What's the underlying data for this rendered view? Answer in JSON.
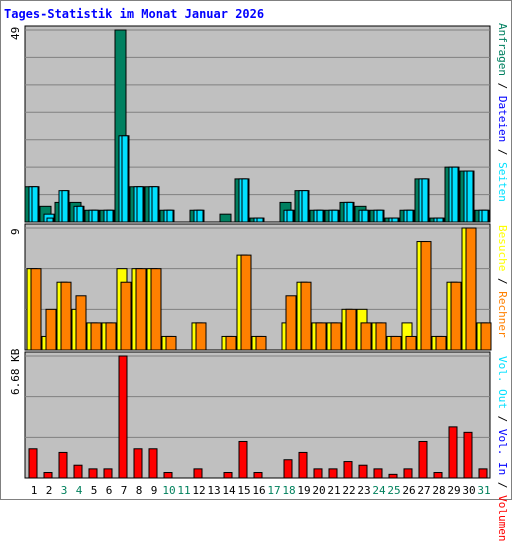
{
  "title": "Tages-Statistik im Monat Januar 2026",
  "colors": {
    "background": "#c0c0c0",
    "border": "#000000",
    "grid": "#808080",
    "requests": "#008060",
    "files": "#00e0ff",
    "pages": "#00e0ff",
    "visits": "#ffff00",
    "sites": "#ff8000",
    "volume": "#ff0000",
    "weekend_label": "#00805c",
    "title": "#0000ff"
  },
  "y_ticks": {
    "top": "49",
    "middle": "9",
    "bottom": "6.68 KB"
  },
  "legends": {
    "top": [
      {
        "text": "Anfragen",
        "color": "#008060"
      },
      {
        "text": "Dateien",
        "color": "#0000ff"
      },
      {
        "text": "Seiten",
        "color": "#00e0ff"
      }
    ],
    "middle": [
      {
        "text": "Besuche",
        "color": "#ffff00"
      },
      {
        "text": "Rechner",
        "color": "#ff8000"
      }
    ],
    "bottom": [
      {
        "text": "Vol. Out",
        "color": "#00e0ff"
      },
      {
        "text": "Vol. In",
        "color": "#0000ff"
      },
      {
        "text": "Volumen",
        "color": "#ff0000"
      }
    ]
  },
  "chart_data": [
    {
      "type": "bar",
      "panel": "top",
      "categories": [
        "1",
        "2",
        "3",
        "4",
        "5",
        "6",
        "7",
        "8",
        "9",
        "10",
        "11",
        "12",
        "13",
        "14",
        "15",
        "16",
        "17",
        "18",
        "19",
        "20",
        "21",
        "22",
        "23",
        "24",
        "25",
        "26",
        "27",
        "28",
        "29",
        "30",
        "31"
      ],
      "weekend_days": [
        "3",
        "4",
        "10",
        "11",
        "17",
        "18",
        "24",
        "25",
        "31"
      ],
      "ylim": [
        0,
        49
      ],
      "series": [
        {
          "name": "Anfragen",
          "values": [
            9,
            4,
            5,
            5,
            3,
            3,
            49,
            9,
            9,
            3,
            0,
            3,
            0,
            2,
            11,
            1,
            0,
            5,
            8,
            3,
            3,
            5,
            4,
            3,
            1,
            3,
            11,
            1,
            14,
            13,
            3
          ]
        },
        {
          "name": "Dateien",
          "values": [
            9,
            2,
            8,
            4,
            3,
            3,
            22,
            9,
            9,
            3,
            0,
            3,
            0,
            0,
            11,
            1,
            0,
            3,
            8,
            3,
            3,
            5,
            3,
            3,
            1,
            3,
            11,
            1,
            14,
            13,
            3
          ]
        },
        {
          "name": "Seiten",
          "values": [
            9,
            1,
            8,
            4,
            3,
            3,
            22,
            9,
            9,
            3,
            0,
            3,
            0,
            0,
            11,
            1,
            0,
            3,
            8,
            3,
            3,
            5,
            3,
            3,
            1,
            3,
            11,
            1,
            14,
            13,
            3
          ]
        }
      ]
    },
    {
      "type": "bar",
      "panel": "middle",
      "categories": [
        "1",
        "2",
        "3",
        "4",
        "5",
        "6",
        "7",
        "8",
        "9",
        "10",
        "11",
        "12",
        "13",
        "14",
        "15",
        "16",
        "17",
        "18",
        "19",
        "20",
        "21",
        "22",
        "23",
        "24",
        "25",
        "26",
        "27",
        "28",
        "29",
        "30",
        "31"
      ],
      "ylim": [
        0,
        9
      ],
      "series": [
        {
          "name": "Besuche",
          "values": [
            6,
            1,
            5,
            3,
            2,
            2,
            6,
            6,
            6,
            1,
            0,
            2,
            0,
            1,
            7,
            1,
            0,
            2,
            5,
            2,
            2,
            3,
            3,
            2,
            1,
            2,
            8,
            1,
            5,
            9,
            2
          ]
        },
        {
          "name": "Rechner",
          "values": [
            6,
            3,
            5,
            4,
            2,
            2,
            5,
            6,
            6,
            1,
            0,
            2,
            0,
            1,
            7,
            1,
            0,
            4,
            5,
            2,
            2,
            3,
            2,
            2,
            1,
            1,
            8,
            1,
            5,
            9,
            2
          ]
        }
      ]
    },
    {
      "type": "bar",
      "panel": "bottom",
      "categories": [
        "1",
        "2",
        "3",
        "4",
        "5",
        "6",
        "7",
        "8",
        "9",
        "10",
        "11",
        "12",
        "13",
        "14",
        "15",
        "16",
        "17",
        "18",
        "19",
        "20",
        "21",
        "22",
        "23",
        "24",
        "25",
        "26",
        "27",
        "28",
        "29",
        "30",
        "31"
      ],
      "ylim": [
        0,
        6.68
      ],
      "yunit": "KB",
      "series": [
        {
          "name": "Volumen",
          "values": [
            1.6,
            0.3,
            1.4,
            0.7,
            0.5,
            0.5,
            6.68,
            1.6,
            1.6,
            0.3,
            0,
            0.5,
            0,
            0.3,
            2.0,
            0.3,
            0,
            1.0,
            1.4,
            0.5,
            0.5,
            0.9,
            0.7,
            0.5,
            0.2,
            0.5,
            2.0,
            0.3,
            2.8,
            2.5,
            0.5
          ]
        },
        {
          "name": "Vol. In",
          "values": [
            0,
            0,
            0,
            0,
            0,
            0,
            0,
            0,
            0,
            0,
            0,
            0,
            0,
            0,
            0,
            0,
            0,
            0,
            0,
            0,
            0,
            0,
            0,
            0,
            0,
            0,
            0,
            0,
            0,
            0,
            0
          ]
        },
        {
          "name": "Vol. Out",
          "values": [
            0,
            0,
            0,
            0,
            0,
            0,
            0,
            0,
            0,
            0,
            0,
            0,
            0,
            0,
            0,
            0,
            0,
            0,
            0,
            0,
            0,
            0,
            0,
            0,
            0,
            0,
            0,
            0,
            0,
            0,
            0
          ]
        }
      ]
    }
  ]
}
